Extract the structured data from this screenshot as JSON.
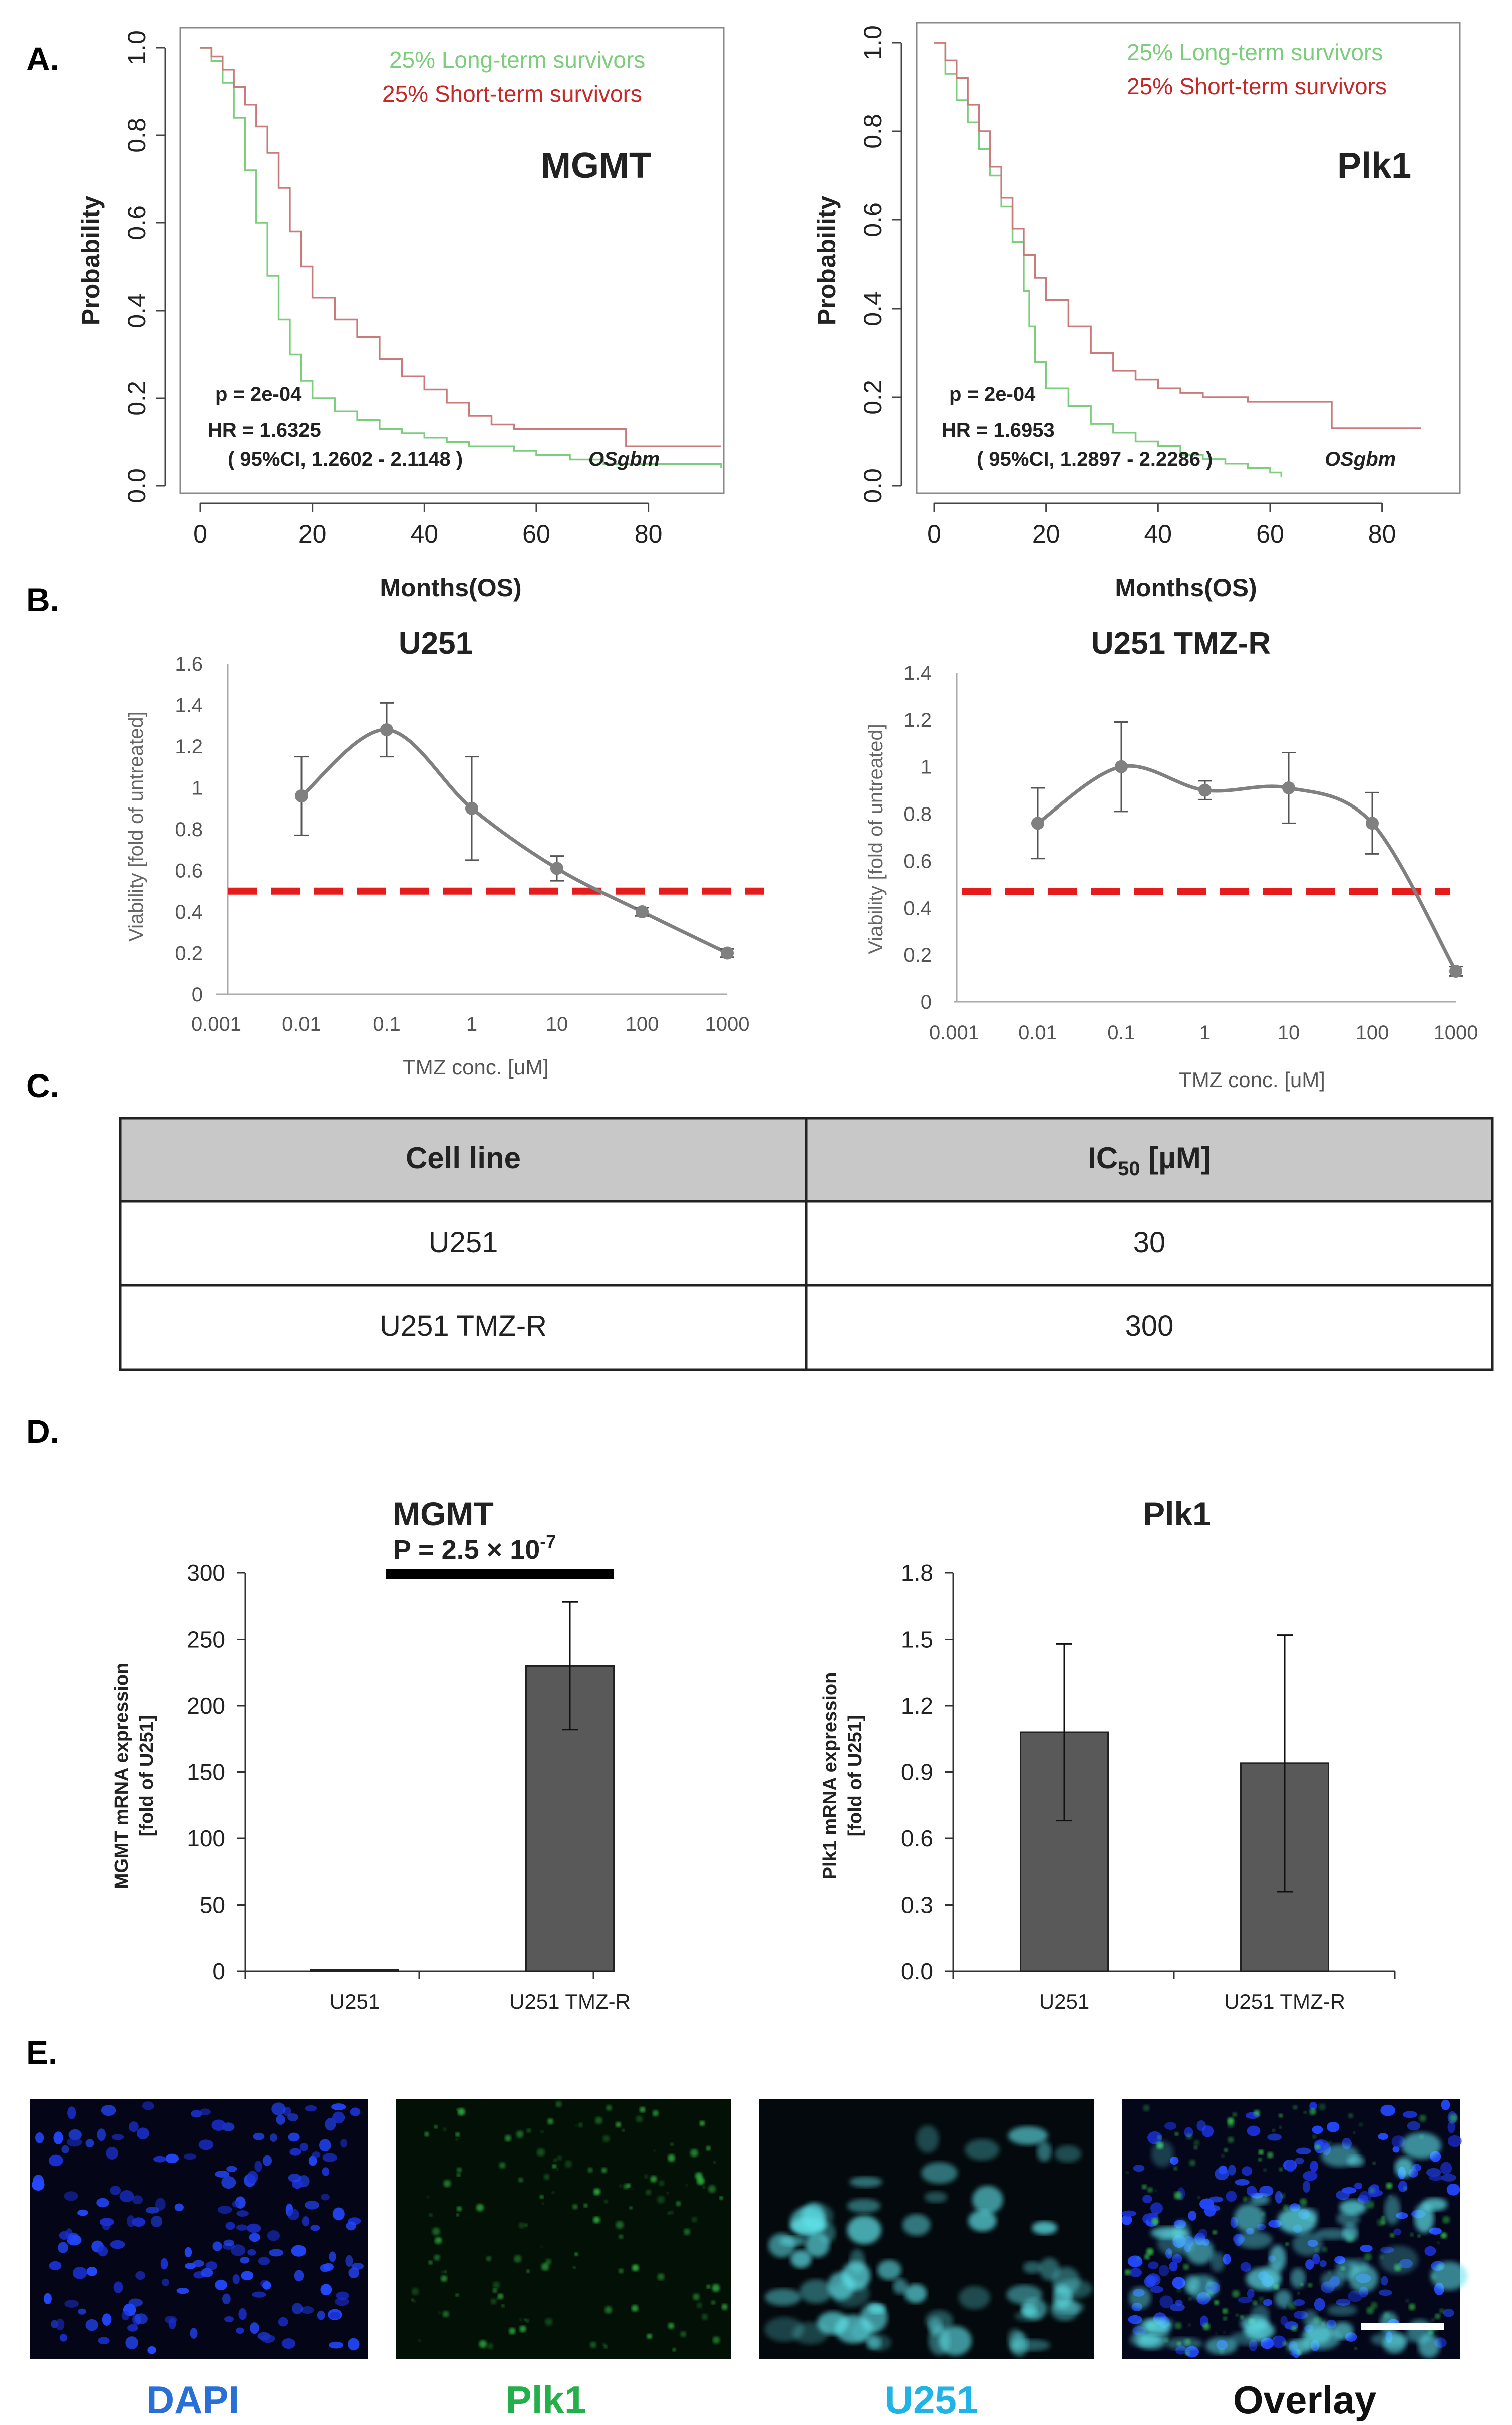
{
  "panels": {
    "A": "A.",
    "B": "B.",
    "C": "C.",
    "D": "D.",
    "E": "E."
  },
  "colors": {
    "long_term": "#7ccd7c",
    "short_term": "#c97a7a",
    "curve": "#808080",
    "threshold": "#e61c1c",
    "bar": "#595959",
    "table_header": "#c8c8c8",
    "dapi": "#2a6fd6",
    "plk1": "#23b04b",
    "u251": "#1fb3e6"
  },
  "chart_data": [
    {
      "id": "km_mgmt",
      "type": "line",
      "subtitle": "MGMT",
      "xlabel": "Months(OS)",
      "ylabel": "Probability",
      "xlim": [
        0,
        93
      ],
      "ylim": [
        0,
        1.0
      ],
      "xticks": [
        "0",
        "20",
        "40",
        "60",
        "80"
      ],
      "yticks": [
        "0.0",
        "0.2",
        "0.4",
        "0.6",
        "0.8",
        "1.0"
      ],
      "legend": [
        "25% Long-term survivors",
        "25% Short-term survivors"
      ],
      "stats": {
        "p": "p = 2e-04",
        "hr": "HR = 1.6325",
        "ci": "( 95%CI, 1.2602 - 2.1148 )",
        "tag": "OSgbm"
      },
      "series": [
        {
          "name": "25% Long-term survivors",
          "x": [
            0,
            2,
            4,
            6,
            8,
            10,
            12,
            14,
            16,
            18,
            20,
            24,
            28,
            32,
            36,
            40,
            44,
            48,
            52,
            56,
            60,
            66,
            72,
            80,
            93
          ],
          "y": [
            1.0,
            0.97,
            0.92,
            0.84,
            0.72,
            0.6,
            0.48,
            0.38,
            0.3,
            0.24,
            0.2,
            0.17,
            0.15,
            0.13,
            0.12,
            0.11,
            0.1,
            0.09,
            0.09,
            0.08,
            0.07,
            0.06,
            0.05,
            0.05,
            0.04
          ]
        },
        {
          "name": "25% Short-term survivors",
          "x": [
            0,
            2,
            4,
            6,
            8,
            10,
            12,
            14,
            16,
            18,
            20,
            24,
            28,
            32,
            36,
            40,
            44,
            48,
            52,
            56,
            60,
            66,
            72,
            75,
            76,
            93
          ],
          "y": [
            1.0,
            0.98,
            0.95,
            0.91,
            0.87,
            0.82,
            0.76,
            0.68,
            0.58,
            0.5,
            0.43,
            0.38,
            0.34,
            0.29,
            0.25,
            0.22,
            0.19,
            0.16,
            0.14,
            0.13,
            0.13,
            0.13,
            0.13,
            0.13,
            0.09,
            0.09
          ]
        }
      ]
    },
    {
      "id": "km_plk1",
      "type": "line",
      "subtitle": "Plk1",
      "xlabel": "Months(OS)",
      "ylabel": "Probability",
      "xlim": [
        0,
        93
      ],
      "ylim": [
        0,
        1.0
      ],
      "xticks": [
        "0",
        "20",
        "40",
        "60",
        "80"
      ],
      "yticks": [
        "0.0",
        "0.2",
        "0.4",
        "0.6",
        "0.8",
        "1.0"
      ],
      "legend": [
        "25% Long-term survivors",
        "25% Short-term survivors"
      ],
      "stats": {
        "p": "p = 2e-04",
        "hr": "HR = 1.6953",
        "ci": "( 95%CI, 1.2897 - 2.2286 )",
        "tag": "OSgbm"
      },
      "series": [
        {
          "name": "25% Long-term survivors",
          "x": [
            0,
            2,
            4,
            6,
            8,
            10,
            12,
            14,
            16,
            17,
            18,
            20,
            24,
            28,
            32,
            36,
            40,
            44,
            48,
            52,
            56,
            60,
            62
          ],
          "y": [
            1.0,
            0.93,
            0.87,
            0.82,
            0.76,
            0.7,
            0.63,
            0.55,
            0.44,
            0.36,
            0.28,
            0.22,
            0.18,
            0.14,
            0.12,
            0.1,
            0.09,
            0.07,
            0.06,
            0.05,
            0.04,
            0.03,
            0.02
          ]
        },
        {
          "name": "25% Short-term survivors",
          "x": [
            0,
            2,
            4,
            6,
            8,
            10,
            12,
            14,
            16,
            18,
            20,
            24,
            28,
            32,
            36,
            40,
            44,
            48,
            52,
            56,
            60,
            66,
            70,
            71,
            87
          ],
          "y": [
            1.0,
            0.96,
            0.92,
            0.86,
            0.8,
            0.72,
            0.65,
            0.58,
            0.52,
            0.47,
            0.42,
            0.36,
            0.3,
            0.26,
            0.24,
            0.22,
            0.21,
            0.2,
            0.2,
            0.19,
            0.19,
            0.19,
            0.19,
            0.13,
            0.13
          ]
        }
      ]
    },
    {
      "id": "via_u251",
      "type": "line",
      "title": "U251",
      "xlabel": "TMZ conc. [uM]",
      "ylabel": "Viability [fold of untreated]",
      "ylim": [
        0,
        1.6
      ],
      "xscale": "log",
      "xticks": [
        "0.001",
        "0.01",
        "0.1",
        "1",
        "10",
        "100",
        "1000"
      ],
      "yticks": [
        "0",
        "0.2",
        "0.4",
        "0.6",
        "0.8",
        "1",
        "1.2",
        "1.4",
        "1.6"
      ],
      "x": [
        0.01,
        0.1,
        1,
        10,
        100,
        1000
      ],
      "y": [
        0.96,
        1.28,
        0.9,
        0.61,
        0.4,
        0.2
      ],
      "err": [
        0.19,
        0.13,
        0.25,
        0.06,
        0.02,
        0.02
      ],
      "threshold": 0.5
    },
    {
      "id": "via_tmzr",
      "type": "line",
      "title": "U251 TMZ-R",
      "xlabel": "TMZ conc. [uM]",
      "ylabel": "Viability [fold of untreated]",
      "ylim": [
        0,
        1.4
      ],
      "xscale": "log",
      "xticks": [
        "0.001",
        "0.01",
        "0.1",
        "1",
        "10",
        "100",
        "1000"
      ],
      "yticks": [
        "0",
        "0.2",
        "0.4",
        "0.6",
        "0.8",
        "1",
        "1.2",
        "1.4"
      ],
      "x": [
        0.01,
        0.1,
        1,
        10,
        100,
        1000
      ],
      "y": [
        0.76,
        1.0,
        0.9,
        0.91,
        0.76,
        0.13
      ],
      "err": [
        0.15,
        0.19,
        0.04,
        0.15,
        0.13,
        0.02
      ],
      "threshold": 0.47
    },
    {
      "id": "table_ic50",
      "type": "table",
      "headers": [
        "Cell line",
        "IC",
        "50",
        " [µM]"
      ],
      "rows": [
        [
          "U251",
          "30"
        ],
        [
          "U251 TMZ-R",
          "300"
        ]
      ]
    },
    {
      "id": "bar_mgmt",
      "type": "bar",
      "title": "MGMT",
      "ylabel_line1": "MGMT mRNA expression",
      "ylabel_line2": "[fold of U251]",
      "categories": [
        "U251",
        "U251 TMZ-R"
      ],
      "values": [
        1,
        230
      ],
      "err": [
        0,
        48
      ],
      "ylim": [
        0,
        300
      ],
      "yticks": [
        "0",
        "50",
        "100",
        "150",
        "200",
        "250",
        "300"
      ],
      "pvalue": "P = 2.5 × 10",
      "pexp": "-7"
    },
    {
      "id": "bar_plk1",
      "type": "bar",
      "title": "Plk1",
      "ylabel_line1": "Plk1 mRNA expression",
      "ylabel_line2": "[fold of U251]",
      "categories": [
        "U251",
        "U251 TMZ-R"
      ],
      "values": [
        1.08,
        0.94
      ],
      "err": [
        0.4,
        0.58
      ],
      "ylim": [
        0,
        1.8
      ],
      "yticks": [
        "0.0",
        "0.3",
        "0.6",
        "0.9",
        "1.2",
        "1.5",
        "1.8"
      ]
    }
  ],
  "images": {
    "labels": [
      "DAPI",
      "Plk1",
      "U251",
      "Overlay"
    ]
  }
}
